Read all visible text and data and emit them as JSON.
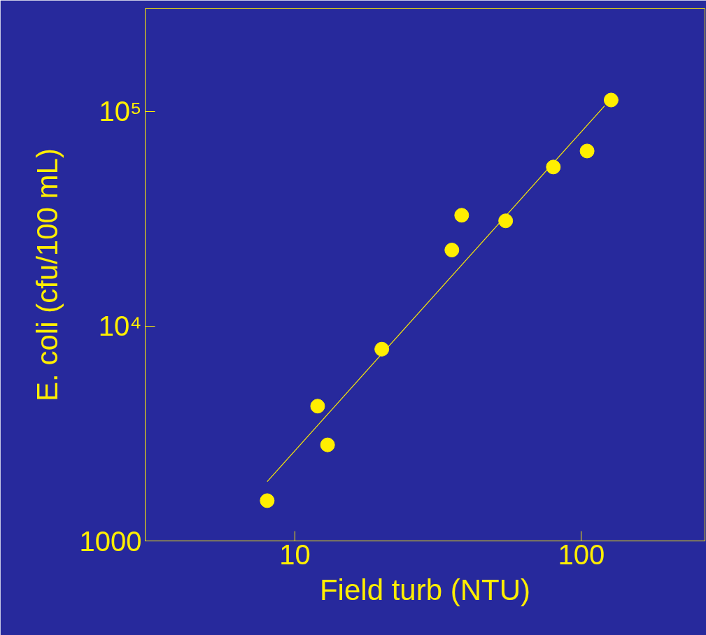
{
  "chart_data": {
    "type": "scatter",
    "xlabel": "Field turb (NTU)",
    "ylabel": "E. coli (cfu/100 mL)",
    "log": "xy",
    "grid": false,
    "marker": "circle",
    "xlim": [
      3,
      270
    ],
    "xticks": [
      10,
      100
    ],
    "ylim": [
      1000,
      300000
    ],
    "yticks": [
      1000,
      {
        "value": 10000,
        "label": "10⁴"
      },
      {
        "value": 100000,
        "label": "10⁵"
      }
    ],
    "series": [
      {
        "color": "#ffee00",
        "x": [
          8,
          12,
          13,
          20.1,
          35.3,
          38.2,
          54.4,
          79.8,
          104.7,
          127
        ],
        "values": [
          1540,
          4240,
          2800,
          7810,
          22600,
          32800,
          30900,
          55000,
          65300,
          112800
        ]
      },
      {
        "type": "line",
        "color": "#ffee00",
        "marker": "none",
        "x": [
          8,
          120.5
        ],
        "values": [
          1890,
          106000
        ]
      }
    ]
  }
}
